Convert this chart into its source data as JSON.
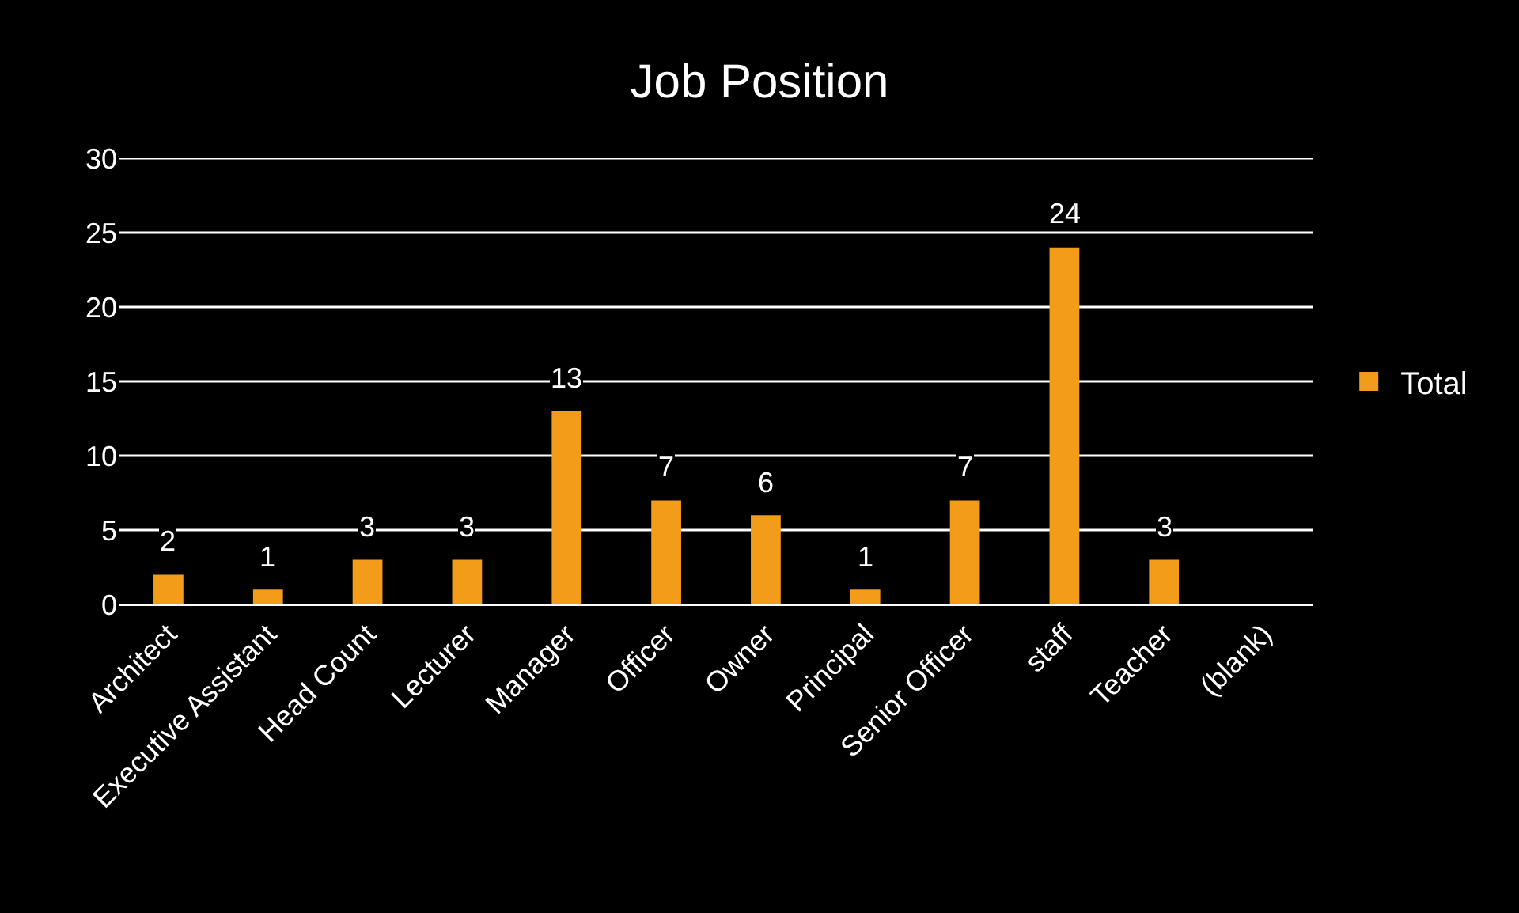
{
  "chart_data": {
    "type": "bar",
    "title": "Job Position",
    "categories": [
      "Architect",
      "Executive Assistant",
      "Head Count",
      "Lecturer",
      "Manager",
      "Officer",
      "Owner",
      "Principal",
      "Senior Officer",
      "staff",
      "Teacher",
      "(blank)"
    ],
    "series": [
      {
        "name": "Total",
        "color": "#f39c1a",
        "values": [
          2,
          1,
          3,
          3,
          13,
          7,
          6,
          1,
          7,
          24,
          3,
          null
        ]
      }
    ],
    "ylim": [
      0,
      30
    ],
    "yticks": [
      0,
      5,
      10,
      15,
      20,
      25,
      30
    ],
    "grid": "y",
    "legend": "right",
    "data_labels": true
  }
}
